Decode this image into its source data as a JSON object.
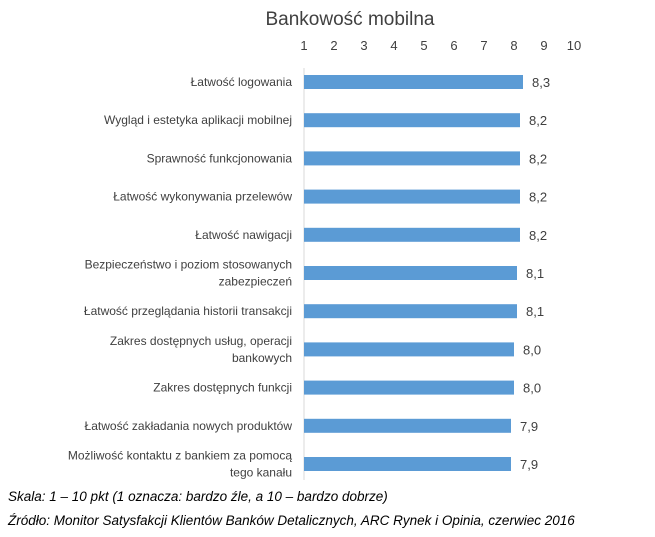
{
  "chart_data": {
    "type": "bar",
    "orientation": "horizontal",
    "title": "Bankowość mobilna",
    "xlabel": "",
    "ylabel": "",
    "xlim": [
      1,
      10
    ],
    "xticks": [
      "1",
      "2",
      "3",
      "4",
      "5",
      "6",
      "7",
      "8",
      "9",
      "10"
    ],
    "xaxis_position": "top",
    "grid": false,
    "bar_color": "#5B9BD5",
    "categories": [
      [
        "Łatwość logowania"
      ],
      [
        "Wygląd i estetyka aplikacji mobilnej"
      ],
      [
        "Sprawność funkcjonowania"
      ],
      [
        "Łatwość wykonywania przelewów"
      ],
      [
        "Łatwość nawigacji"
      ],
      [
        "Bezpieczeństwo i poziom stosowanych",
        "zabezpieczeń"
      ],
      [
        "Łatwość przeglądania historii transakcji"
      ],
      [
        "Zakres dostępnych usług, operacji",
        "bankowych"
      ],
      [
        "Zakres dostępnych funkcji"
      ],
      [
        "Łatwość zakładania nowych produktów"
      ],
      [
        "Możliwość kontaktu z bankiem za pomocą",
        "tego kanału"
      ]
    ],
    "values": [
      8.3,
      8.2,
      8.2,
      8.2,
      8.2,
      8.1,
      8.1,
      8.0,
      8.0,
      7.9,
      7.9
    ],
    "value_labels": [
      "8,3",
      "8,2",
      "8,2",
      "8,2",
      "8,2",
      "8,1",
      "8,1",
      "8,0",
      "8,0",
      "7,9",
      "7,9"
    ]
  },
  "footer": {
    "scale_note": "Skala: 1 – 10 pkt (1 oznacza: bardzo źle, a 10 – bardzo dobrze)",
    "source": "Źródło: Monitor Satysfakcji Klientów Banków Detalicznych, ARC Rynek i Opinia, czerwiec 2016"
  }
}
